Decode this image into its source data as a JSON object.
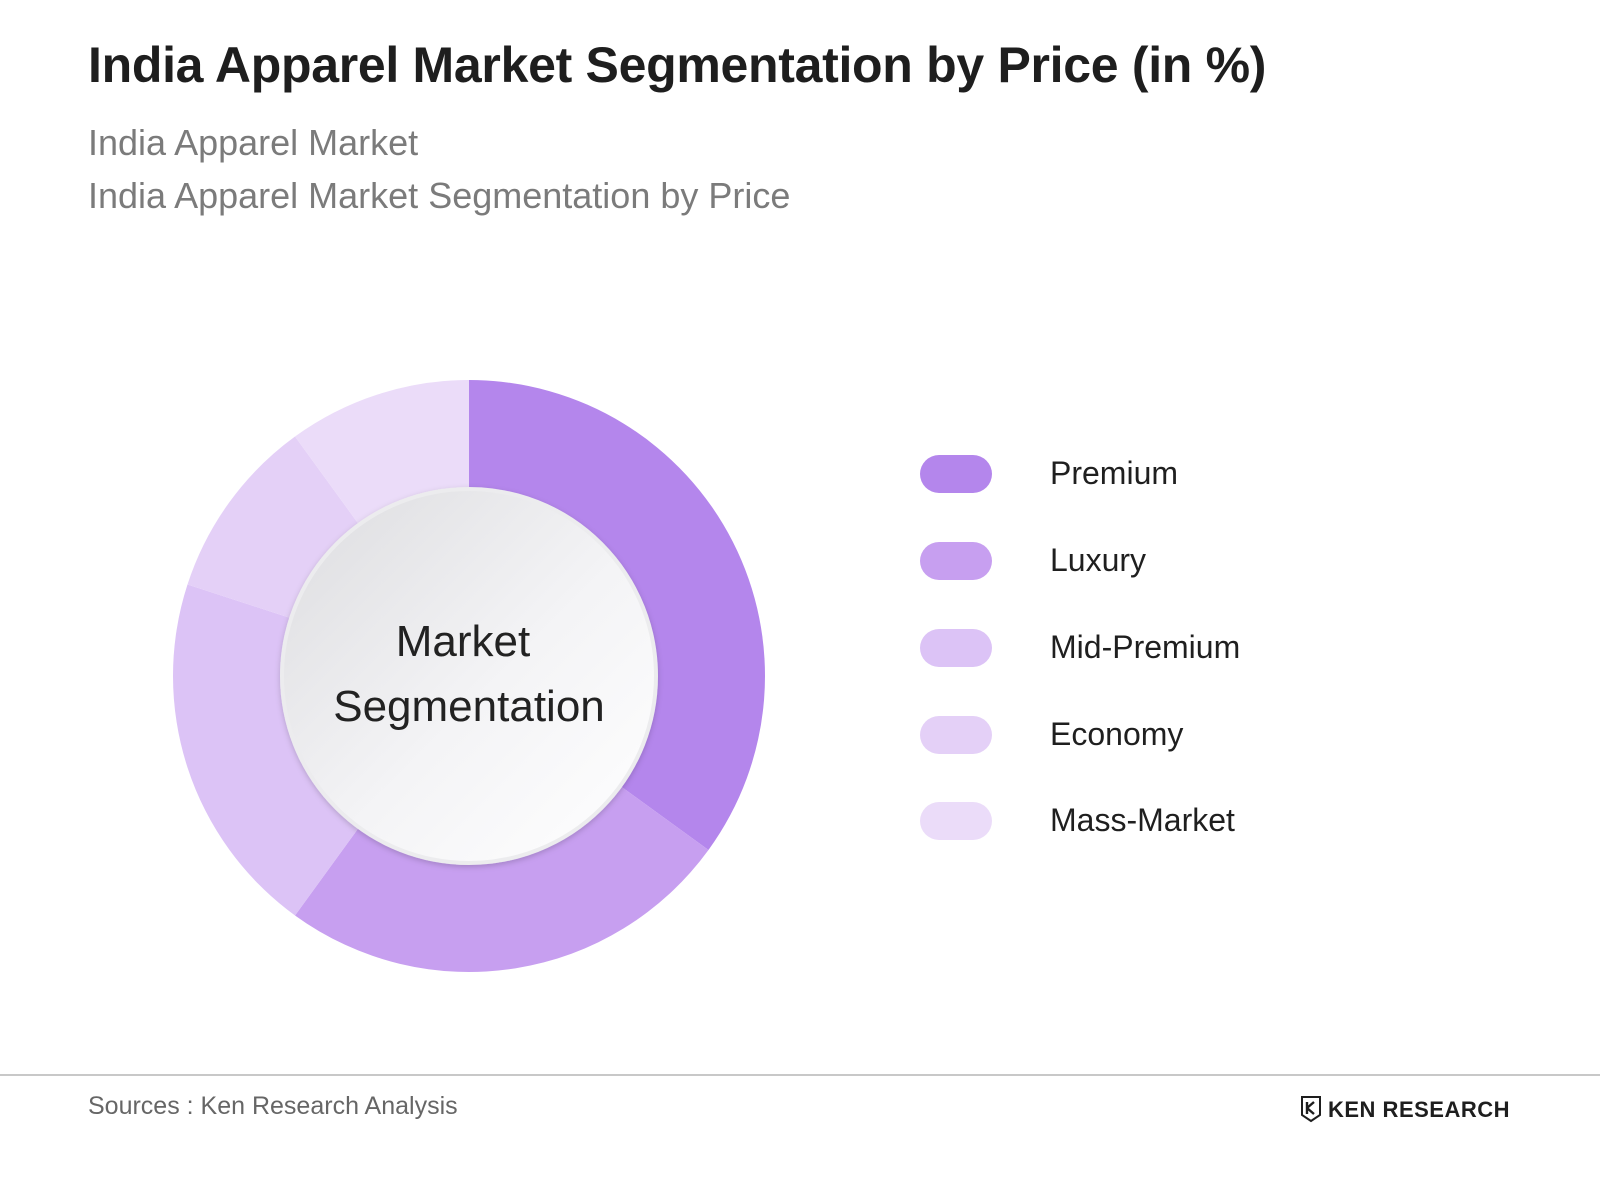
{
  "header": {
    "title": "India Apparel Market Segmentation by Price (in %)",
    "subtitle_1": "India Apparel Market",
    "subtitle_2": "India Apparel Market Segmentation by Price"
  },
  "chart_data": {
    "type": "pie",
    "style": "donut",
    "center_label": [
      "Market",
      "Segmentation"
    ],
    "categories": [
      "Premium",
      "Luxury",
      "Mid-Premium",
      "Economy",
      "Mass-Market"
    ],
    "values": [
      35,
      25,
      20,
      10,
      10
    ],
    "colors": [
      "#b486ec",
      "#c79ff0",
      "#dcc3f6",
      "#e4d0f7",
      "#ebdcf9"
    ],
    "legend_position": "right"
  },
  "footer": {
    "sources": "Sources : Ken Research Analysis",
    "logo_text": "KEN RESEARCH",
    "logo_icon": "ken-research-logo-icon"
  }
}
